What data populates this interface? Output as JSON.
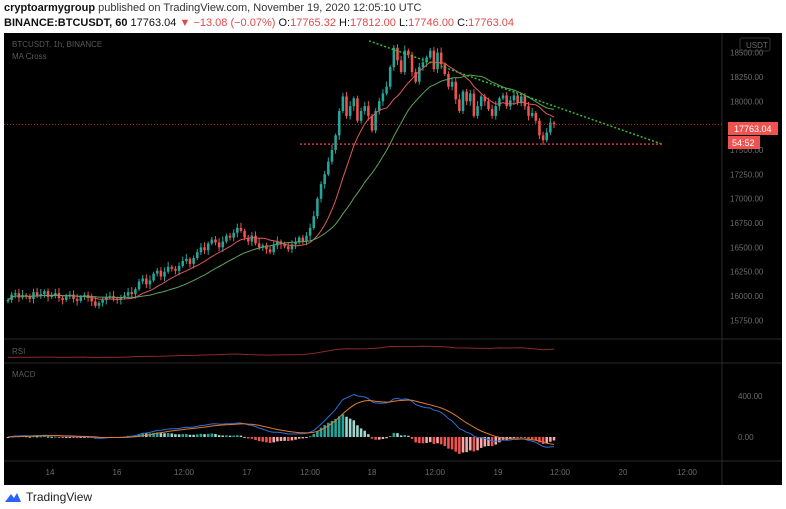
{
  "header": {
    "author": "cryptoarmygroup",
    "published": "published on TradingView.com, November 19, 2020 12:05:10 UTC",
    "symbol": "BINANCE:BTCUSDT, 60",
    "last": "17763.04",
    "change": "−13.08 (−0.07%)",
    "o_label": "O:",
    "o_value": "17765.32",
    "h_label": "H:",
    "h_value": "17812.00",
    "l_label": "L:",
    "l_value": "17746.00",
    "c_label": "C:",
    "c_value": "17763.04"
  },
  "chart_header": {
    "series_label": "BTCUSDT, 1h, BINANCE",
    "indicator_label": "MA Cross",
    "currency_badge": "USDT"
  },
  "price_badges": {
    "last_price": "17763.04",
    "countdown": "54:52"
  },
  "indicator_panels": {
    "rsi_label": "RSI",
    "macd_label": "MACD"
  },
  "footer": {
    "brand": "TradingView"
  },
  "colors": {
    "up": "#26a69a",
    "down": "#ef5350",
    "ma_fast": "#e05a5a",
    "ma_slow": "#5fa35f",
    "trendline": "#2fbf3a",
    "support": "#d63a3a",
    "macd": "#2f6fd6",
    "signal": "#e07b2f",
    "rsi": "#8b2a2a",
    "background": "#000000"
  },
  "chart_data": {
    "type": "candlestick",
    "title": "",
    "y_ticks": [
      18500,
      18250,
      18000,
      17750,
      17500,
      17250,
      17000,
      16750,
      16500,
      16250,
      16000,
      15750
    ],
    "y_tick_labels": [
      "18500.00",
      "18250.00",
      "18000.00",
      "17750.00",
      "17500.00",
      "17250.00",
      "17000.00",
      "16750.00",
      "16500.00",
      "16250.00",
      "16000.00",
      "15750.00"
    ],
    "x_ticks": [
      "14",
      "16",
      "12:00",
      "17",
      "12:00",
      "18",
      "12:00",
      "19",
      "12:00",
      "20",
      "12:00"
    ],
    "ylim": [
      15600,
      18660
    ],
    "macd_ticks": [
      "400.00",
      "0.00"
    ],
    "annotations": {
      "descending_trendline": {
        "from_price": 18620,
        "to_price": 17560
      },
      "support_line": {
        "price": 17560
      }
    },
    "bars": [
      15960,
      16015,
      16030,
      15985,
      16010,
      15995,
      15970,
      16040,
      16000,
      16020,
      16050,
      15990,
      16005,
      16030,
      15980,
      15960,
      15995,
      16015,
      15970,
      15950,
      15990,
      16010,
      15980,
      15945,
      15900,
      15930,
      15960,
      15990,
      16000,
      15975,
      15960,
      15985,
      16005,
      16040,
      16020,
      16070,
      16150,
      16180,
      16120,
      16160,
      16230,
      16260,
      16200,
      16250,
      16300,
      16280,
      16260,
      16310,
      16360,
      16380,
      16330,
      16390,
      16450,
      16500,
      16470,
      16540,
      16580,
      16550,
      16500,
      16560,
      16620,
      16600,
      16650,
      16700,
      16670,
      16600,
      16560,
      16620,
      16540,
      16500,
      16520,
      16480,
      16450,
      16520,
      16560,
      16530,
      16510,
      16480,
      16530,
      16550,
      16600,
      16560,
      16620,
      16700,
      16820,
      17000,
      17150,
      17250,
      17380,
      17500,
      17650,
      17900,
      18050,
      17850,
      17950,
      18030,
      17800,
      17900,
      17950,
      17850,
      17700,
      17900,
      18000,
      18080,
      18150,
      18350,
      18550,
      18420,
      18300,
      18520,
      18480,
      18300,
      18200,
      18350,
      18400,
      18450,
      18520,
      18330,
      18500,
      18380,
      18280,
      18150,
      18200,
      18020,
      17900,
      18100,
      18000,
      18080,
      17850,
      17950,
      18050,
      18000,
      17920,
      17850,
      17950,
      18030,
      18060,
      17950,
      18010,
      18060,
      17980,
      18050,
      17950,
      17850,
      17880,
      17800,
      17650,
      17600,
      17680,
      17780,
      17763
    ]
  }
}
